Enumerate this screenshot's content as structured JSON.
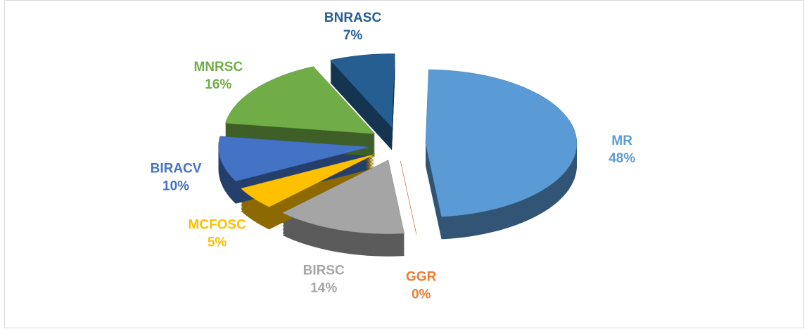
{
  "chart_data": {
    "type": "pie",
    "categories": [
      "MR",
      "GGR",
      "BIRSC",
      "MCFOSC",
      "BIRACV",
      "MNRSC",
      "BNRASC"
    ],
    "values": [
      48,
      0,
      14,
      5,
      10,
      16,
      7
    ],
    "value_labels": [
      "48%",
      "0%",
      "14%",
      "5%",
      "10%",
      "16%",
      "7%"
    ],
    "colors": [
      "#5b9bd5",
      "#ed7d31",
      "#a5a5a5",
      "#ffc000",
      "#4472c4",
      "#70ad47",
      "#255e91"
    ]
  }
}
